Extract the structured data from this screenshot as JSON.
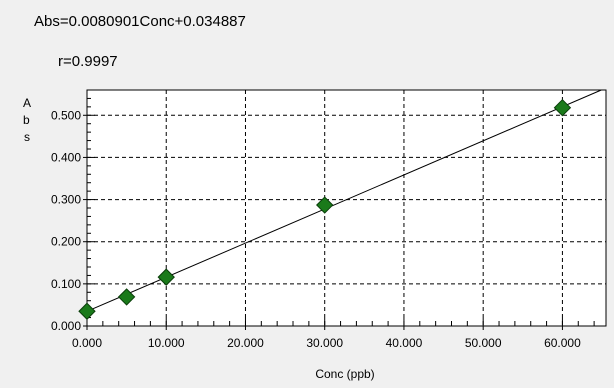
{
  "chart_data": {
    "type": "scatter",
    "equation": "Abs=0.0080901Conc+0.034887",
    "r_text": "r=0.9997",
    "xlabel": "Conc (ppb)",
    "ylabel_chars": [
      "A",
      "b",
      "s"
    ],
    "x_ticks": [
      "0.000",
      "10.000",
      "20.000",
      "30.000",
      "40.000",
      "50.000",
      "60.000"
    ],
    "y_ticks": [
      "0.000",
      "0.100",
      "0.200",
      "0.300",
      "0.400",
      "0.500"
    ],
    "xlim": [
      0,
      65.5
    ],
    "ylim": [
      0,
      0.56
    ],
    "grid": true,
    "series": [
      {
        "points": [
          {
            "x": 0,
            "y": 0.035
          },
          {
            "x": 5,
            "y": 0.069
          },
          {
            "x": 10,
            "y": 0.116
          },
          {
            "x": 30,
            "y": 0.287
          },
          {
            "x": 60,
            "y": 0.518
          }
        ],
        "marker_color": "#1a7a1a",
        "marker_edge": "#0a3d0a"
      }
    ],
    "fit": {
      "slope": 0.0080901,
      "intercept": 0.034887,
      "color": "#000000"
    }
  }
}
